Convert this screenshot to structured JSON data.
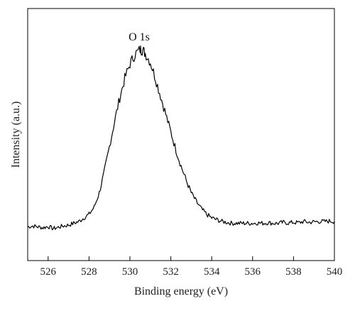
{
  "chart_data": {
    "type": "line",
    "title": "",
    "xlabel": "Binding energy (eV)",
    "ylabel": "Intensity (a.u.)",
    "xlim": [
      525,
      540
    ],
    "ylim": [
      0,
      1.08
    ],
    "x_ticks": [
      526,
      528,
      530,
      532,
      534,
      536,
      538,
      540
    ],
    "x_tick_labels": [
      "526",
      "528",
      "530",
      "532",
      "534",
      "536",
      "538",
      "540"
    ],
    "y_ticks_shown": false,
    "grid": false,
    "legend": "none",
    "annotations": [
      {
        "text": "O 1s",
        "x": 530.45,
        "y": 1.02
      }
    ],
    "series": [
      {
        "x": [
          525.0,
          525.25,
          525.5,
          525.75,
          526.0,
          526.25,
          526.5,
          526.75,
          527.0,
          527.25,
          527.5,
          527.75,
          528.0,
          528.25,
          528.5,
          528.75,
          529.0,
          529.25,
          529.5,
          529.75,
          530.0,
          530.25,
          530.5,
          530.6,
          530.75,
          531.0,
          531.25,
          531.5,
          531.75,
          532.0,
          532.25,
          532.5,
          532.75,
          533.0,
          533.25,
          533.5,
          533.75,
          534.0,
          534.25,
          534.5,
          534.75,
          535.0,
          535.25,
          535.5,
          535.75,
          536.0,
          536.25,
          536.5,
          536.75,
          537.0,
          537.25,
          537.5,
          537.75,
          538.0,
          538.25,
          538.5,
          538.75,
          539.0,
          539.25,
          539.5,
          539.75,
          540.0
        ],
        "y": [
          0.01,
          0.015,
          0.01,
          0.005,
          0.012,
          0.0,
          0.008,
          0.015,
          0.02,
          0.03,
          0.04,
          0.06,
          0.08,
          0.12,
          0.2,
          0.32,
          0.46,
          0.6,
          0.73,
          0.84,
          0.92,
          0.975,
          1.0,
          1.0,
          0.98,
          0.93,
          0.84,
          0.74,
          0.64,
          0.54,
          0.44,
          0.35,
          0.27,
          0.2,
          0.15,
          0.11,
          0.08,
          0.06,
          0.05,
          0.04,
          0.035,
          0.03,
          0.03,
          0.03,
          0.03,
          0.03,
          0.032,
          0.03,
          0.033,
          0.03,
          0.03,
          0.035,
          0.032,
          0.035,
          0.033,
          0.04,
          0.035,
          0.038,
          0.04,
          0.04,
          0.042,
          0.04
        ]
      }
    ],
    "line_color": "#000000"
  }
}
